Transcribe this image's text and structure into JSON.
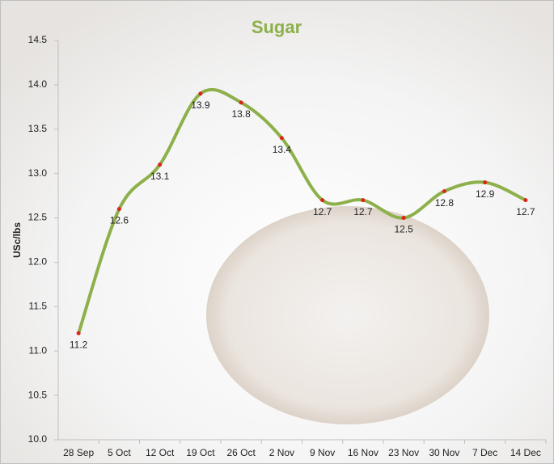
{
  "chart_data": {
    "type": "line",
    "title": "Sugar",
    "y_label": "USc/lbs",
    "categories": [
      "28 Sep",
      "5 Oct",
      "12 Oct",
      "19 Oct",
      "26 Oct",
      "2 Nov",
      "9 Nov",
      "16 Nov",
      "23 Nov",
      "30 Nov",
      "7 Dec",
      "14 Dec"
    ],
    "series": [
      {
        "name": "Sugar",
        "color": "#8db04a",
        "marker_color": "#d9261c",
        "values": [
          11.2,
          12.6,
          13.1,
          13.9,
          13.8,
          13.4,
          12.7,
          12.7,
          12.5,
          12.8,
          12.9,
          12.7
        ]
      }
    ],
    "ylim": [
      10,
      14.5
    ],
    "yticks": [
      {
        "value": 10,
        "label": "10.0"
      },
      10.5,
      {
        "value": 11,
        "label": "11.0"
      },
      11.5,
      {
        "value": 12,
        "label": "12.0"
      },
      12.5,
      {
        "value": 13,
        "label": "13.0"
      },
      13.5,
      {
        "value": 14,
        "label": "14.0"
      },
      14.5
    ],
    "grid": false,
    "smooth": true
  }
}
